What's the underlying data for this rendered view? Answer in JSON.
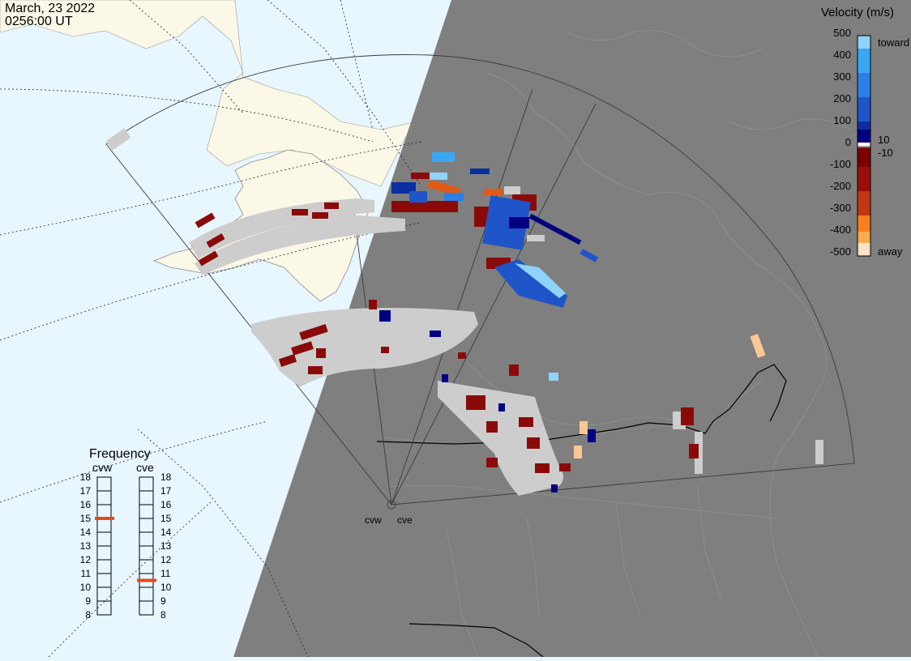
{
  "header": {
    "date": "March, 23 2022",
    "time": "0256:00 UT"
  },
  "velocity_legend": {
    "title": "Velocity (m/s)",
    "tick_labels": [
      "500",
      "400",
      "300",
      "200",
      "100",
      "10",
      "0",
      "-10",
      "-100",
      "-200",
      "-300",
      "-400",
      "-500"
    ],
    "toward_label": "toward",
    "away_label": "away",
    "colors": [
      "#fde3c4",
      "#fdab4e",
      "#f77f1d",
      "#e05a17",
      "#c23612",
      "#9a0f0c",
      "#7c0000",
      "#000080",
      "#0b2fa0",
      "#1f55c8",
      "#2c7fe6",
      "#3aa7f5",
      "#8fd3fb",
      "#d9f1ff"
    ]
  },
  "frequency_panel": {
    "title": "Frequency",
    "radars": [
      {
        "name": "cvw",
        "frequency_mhz": 15
      },
      {
        "name": "cve",
        "frequency_mhz": 10.5
      }
    ],
    "scale": [
      "18",
      "17",
      "16",
      "15",
      "14",
      "13",
      "12",
      "11",
      "10",
      "9",
      "8"
    ]
  },
  "radar_sites": {
    "west_label": "cvw",
    "east_label": "cve"
  },
  "map_colors": {
    "ocean_day": "#e8f6fe",
    "land_day": "#fbf8e7",
    "night": "#7f7f7f",
    "ground_scatter": "#cdcdcd",
    "frequency_marker": "#e64a19"
  }
}
